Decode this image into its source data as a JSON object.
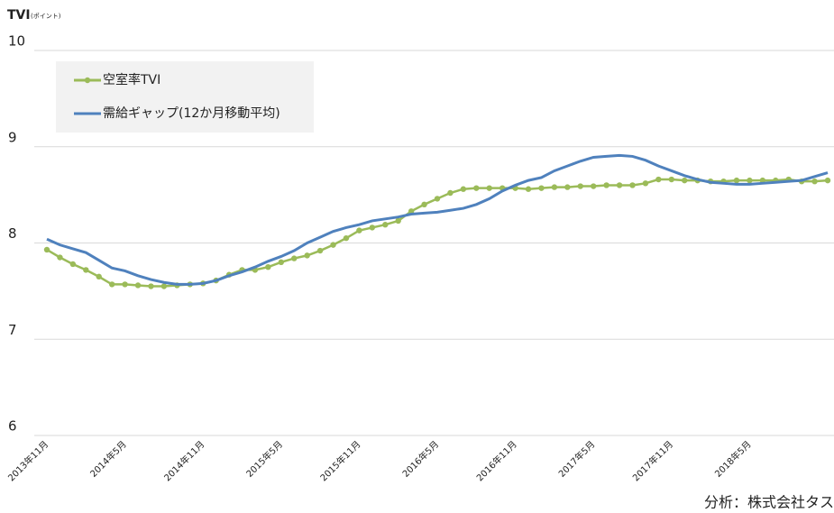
{
  "chart_data": {
    "type": "line",
    "title": "TVI",
    "subtitle": "(ポイント)",
    "source": "分析：株式会社タス",
    "categories": [
      "2013年11月",
      null,
      null,
      null,
      null,
      null,
      "2014年5月",
      null,
      null,
      null,
      null,
      null,
      "2014年11月",
      null,
      null,
      null,
      null,
      null,
      "2015年5月",
      null,
      null,
      null,
      null,
      null,
      "2015年11月",
      null,
      null,
      null,
      null,
      null,
      "2016年5月",
      null,
      null,
      null,
      null,
      null,
      "2016年11月",
      null,
      null,
      null,
      null,
      null,
      "2017年5月",
      null,
      null,
      null,
      null,
      null,
      "2017年11月",
      null,
      null,
      null,
      null,
      null,
      "2018年5月",
      null,
      null,
      null,
      null,
      null,
      null
    ],
    "series": [
      {
        "name": "空室率TVI",
        "color": "#9bbb59",
        "marker": true,
        "values": [
          7.93,
          7.85,
          7.78,
          7.72,
          7.65,
          7.57,
          7.57,
          7.56,
          7.55,
          7.55,
          7.56,
          7.57,
          7.58,
          7.61,
          7.67,
          7.72,
          7.72,
          7.75,
          7.8,
          7.84,
          7.87,
          7.92,
          7.98,
          8.05,
          8.13,
          8.16,
          8.19,
          8.23,
          8.33,
          8.4,
          8.46,
          8.52,
          8.56,
          8.57,
          8.57,
          8.57,
          8.57,
          8.56,
          8.57,
          8.58,
          8.58,
          8.59,
          8.59,
          8.6,
          8.6,
          8.6,
          8.62,
          8.66,
          8.66,
          8.65,
          8.65,
          8.64,
          8.64,
          8.65,
          8.65,
          8.65,
          8.65,
          8.66,
          8.64,
          8.64,
          8.65
        ]
      },
      {
        "name": "需給ギャップ(12か月移動平均)",
        "color": "#4f81bd",
        "marker": false,
        "values": [
          8.04,
          7.98,
          7.94,
          7.9,
          7.82,
          7.74,
          7.71,
          7.66,
          7.62,
          7.59,
          7.57,
          7.57,
          7.58,
          7.61,
          7.66,
          7.7,
          7.75,
          7.81,
          7.86,
          7.92,
          8.0,
          8.06,
          8.12,
          8.16,
          8.19,
          8.23,
          8.25,
          8.27,
          8.3,
          8.31,
          8.32,
          8.34,
          8.36,
          8.4,
          8.46,
          8.54,
          8.6,
          8.65,
          8.68,
          8.75,
          8.8,
          8.85,
          8.89,
          8.9,
          8.91,
          8.9,
          8.86,
          8.8,
          8.75,
          8.7,
          8.66,
          8.63,
          8.62,
          8.61,
          8.61,
          8.62,
          8.63,
          8.64,
          8.65,
          8.69,
          8.73
        ]
      }
    ],
    "ylim": [
      6,
      10
    ],
    "yticks": [
      6,
      7,
      8,
      9,
      10
    ],
    "grid": true,
    "legend": "top-left"
  }
}
